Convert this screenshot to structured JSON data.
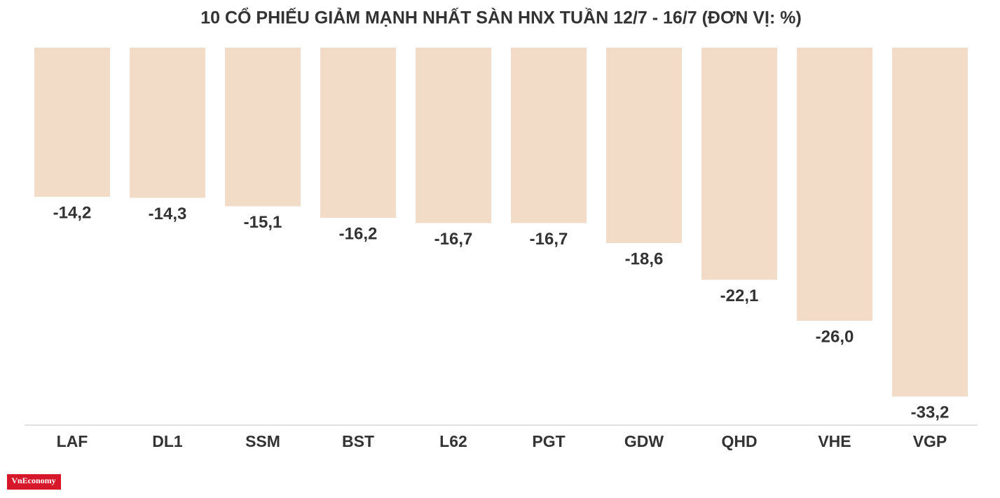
{
  "chart_data": {
    "type": "bar",
    "title": "10 CỔ PHIẾU GIẢM MẠNH NHẤT SÀN HNX TUẦN 12/7 - 16/7 (ĐƠN VỊ: %)",
    "categories": [
      "LAF",
      "DL1",
      "SSM",
      "BST",
      "L62",
      "PGT",
      "GDW",
      "QHD",
      "VHE",
      "VGP"
    ],
    "values": [
      -14.2,
      -14.3,
      -15.1,
      -16.2,
      -16.7,
      -16.7,
      -18.6,
      -22.1,
      -26.0,
      -33.2
    ],
    "value_labels": [
      "-14,2",
      "-14,3",
      "-15,1",
      "-16,2",
      "-16,7",
      "-16,7",
      "-18,6",
      "-22,1",
      "-26,0",
      "-33,2"
    ],
    "color": "#f2dbc7",
    "ylim": [
      -36,
      0
    ]
  },
  "logo": "VnEconomy"
}
